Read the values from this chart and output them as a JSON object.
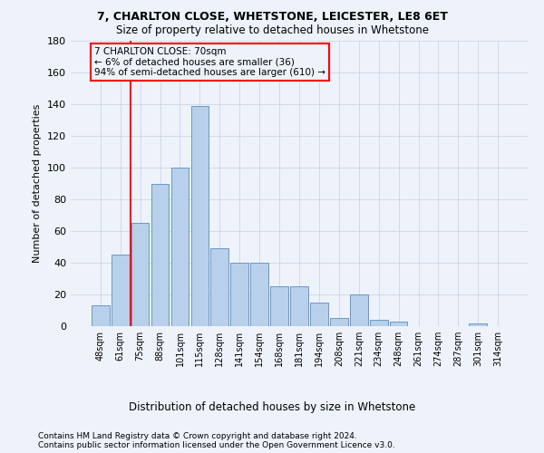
{
  "title1": "7, CHARLTON CLOSE, WHETSTONE, LEICESTER, LE8 6ET",
  "title2": "Size of property relative to detached houses in Whetstone",
  "xlabel": "Distribution of detached houses by size in Whetstone",
  "ylabel": "Number of detached properties",
  "footer1": "Contains HM Land Registry data © Crown copyright and database right 2024.",
  "footer2": "Contains public sector information licensed under the Open Government Licence v3.0.",
  "bar_labels": [
    "48sqm",
    "61sqm",
    "75sqm",
    "88sqm",
    "101sqm",
    "115sqm",
    "128sqm",
    "141sqm",
    "154sqm",
    "168sqm",
    "181sqm",
    "194sqm",
    "208sqm",
    "221sqm",
    "234sqm",
    "248sqm",
    "261sqm",
    "274sqm",
    "287sqm",
    "301sqm",
    "314sqm"
  ],
  "bar_values": [
    13,
    45,
    65,
    90,
    100,
    139,
    49,
    40,
    40,
    25,
    25,
    15,
    5,
    20,
    4,
    3,
    0,
    0,
    0,
    2,
    0
  ],
  "bar_color": "#b8d0ea",
  "bar_edgecolor": "#6699cc",
  "ylim_max": 180,
  "yticks": [
    0,
    20,
    40,
    60,
    80,
    100,
    120,
    140,
    160,
    180
  ],
  "property_line_x": 1.5,
  "ann_line1": "7 CHARLTON CLOSE: 70sqm",
  "ann_line2": "← 6% of detached houses are smaller (36)",
  "ann_line3": "94% of semi-detached houses are larger (610) →",
  "bg_color": "#eef2fb",
  "grid_color": "#c8cfe0"
}
